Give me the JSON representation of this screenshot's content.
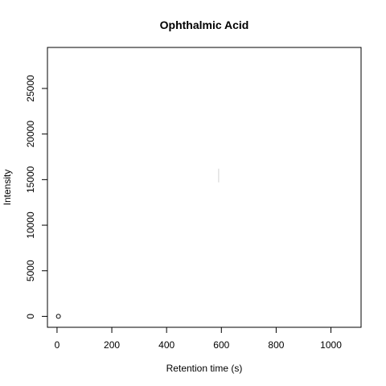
{
  "chart_data": {
    "type": "scatter",
    "title": "Ophthalmic Acid",
    "xlabel": "Retention time (s)",
    "ylabel": "Intensity",
    "xlim": [
      -35,
      1110
    ],
    "ylim": [
      -1200,
      29500
    ],
    "xticks": [
      0,
      200,
      400,
      600,
      800,
      1000
    ],
    "yticks": [
      0,
      5000,
      10000,
      15000,
      20000,
      25000
    ],
    "xtick_labels": [
      "0",
      "200",
      "400",
      "600",
      "800",
      "1000"
    ],
    "ytick_labels": [
      "0",
      "5000",
      "10000",
      "15000",
      "20000",
      "25000"
    ],
    "grid": false,
    "legend": "none",
    "points": [
      {
        "x": 5,
        "y": 0
      }
    ],
    "segments": [
      {
        "x": 590,
        "y0": 14700,
        "y1": 16200
      }
    ],
    "colors": {
      "points": "#000000",
      "segment": "#d3d3d3",
      "axes": "#000000"
    }
  }
}
